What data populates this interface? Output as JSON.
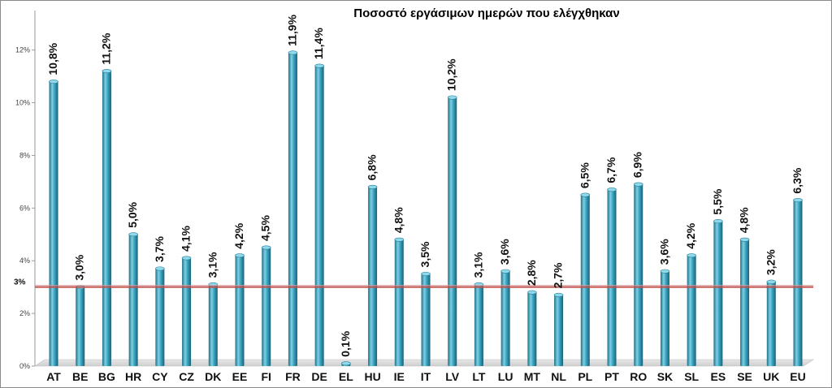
{
  "chart_data": {
    "type": "bar",
    "title": "Ποσοστό εργάσιμων ημερών που ελέγχθηκαν",
    "xlabel": "",
    "ylabel": "",
    "ylim": [
      0,
      13.5
    ],
    "y_ticks": [
      {
        "value": 0,
        "label": "0%"
      },
      {
        "value": 2,
        "label": "2%"
      },
      {
        "value": 4,
        "label": "4%"
      },
      {
        "value": 6,
        "label": "6%"
      },
      {
        "value": 8,
        "label": "8%"
      },
      {
        "value": 10,
        "label": "10%"
      },
      {
        "value": 12,
        "label": "12%"
      }
    ],
    "categories": [
      "AT",
      "BE",
      "BG",
      "HR",
      "CY",
      "CZ",
      "DK",
      "EE",
      "FI",
      "FR",
      "DE",
      "EL",
      "HU",
      "IE",
      "IT",
      "LV",
      "LT",
      "LU",
      "MT",
      "NL",
      "PL",
      "PT",
      "RO",
      "SK",
      "SL",
      "ES",
      "SE",
      "UK",
      "EU"
    ],
    "values": [
      10.8,
      3.0,
      11.2,
      5.0,
      3.7,
      4.1,
      3.1,
      4.2,
      4.5,
      11.9,
      11.4,
      0.1,
      6.8,
      4.8,
      3.5,
      10.2,
      3.1,
      3.6,
      2.8,
      2.7,
      6.5,
      6.7,
      6.9,
      3.6,
      4.2,
      5.5,
      4.8,
      3.2,
      6.3
    ],
    "data_labels": [
      "10,8%",
      "3,0%",
      "11,2%",
      "5,0%",
      "3,7%",
      "4,1%",
      "3,1%",
      "4,2%",
      "4,5%",
      "11,9%",
      "11,4%",
      "0,1%",
      "6,8%",
      "4,8%",
      "3,5%",
      "10,2%",
      "3,1%",
      "3,6%",
      "2,8%",
      "2,7%",
      "6,5%",
      "6,7%",
      "6,9%",
      "3,6%",
      "4,2%",
      "5,5%",
      "4,8%",
      "3,2%",
      "6,3%"
    ],
    "highlight_category": "EL",
    "reference_line": {
      "value": 3,
      "label": "3%"
    },
    "grid": false,
    "legend": "none",
    "colors": {
      "bar": "#3aa6c2",
      "bar_dark": "#1f6f86",
      "bar_light": "#7fd0e3",
      "reference_line": "#c0504d",
      "highlight_label": "#1f1fbf"
    }
  }
}
